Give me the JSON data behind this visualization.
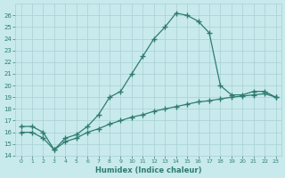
{
  "xlabel": "Humidex (Indice chaleur)",
  "x_main": [
    0,
    1,
    2,
    3,
    4,
    5,
    6,
    7,
    8,
    9,
    10,
    11,
    12,
    13,
    14,
    15,
    16,
    17,
    18,
    19,
    20,
    21,
    22,
    23
  ],
  "line_curve": [
    16.5,
    16.5,
    16.0,
    14.5,
    15.5,
    15.8,
    16.5,
    17.5,
    19.0,
    19.5,
    21.0,
    22.5,
    24.0,
    25.0,
    26.2,
    26.0,
    25.5,
    24.5,
    20.0,
    19.2,
    19.2,
    19.5,
    19.5,
    19.0
  ],
  "line_linear": [
    16.0,
    16.0,
    15.5,
    14.5,
    15.2,
    15.5,
    16.0,
    16.3,
    16.7,
    17.0,
    17.3,
    17.5,
    17.8,
    18.0,
    18.2,
    18.4,
    18.6,
    18.7,
    18.85,
    19.0,
    19.1,
    19.2,
    19.3,
    19.0
  ],
  "color": "#2e7d6e",
  "bg_color": "#c8eaed",
  "grid_color": "#a8cfd2",
  "ylim": [
    14,
    27
  ],
  "xlim": [
    -0.5,
    23.5
  ],
  "yticks": [
    14,
    15,
    16,
    17,
    18,
    19,
    20,
    21,
    22,
    23,
    24,
    25,
    26
  ],
  "xticks": [
    0,
    1,
    2,
    3,
    4,
    5,
    6,
    7,
    8,
    9,
    10,
    11,
    12,
    13,
    14,
    15,
    16,
    17,
    18,
    19,
    20,
    21,
    22,
    23
  ]
}
